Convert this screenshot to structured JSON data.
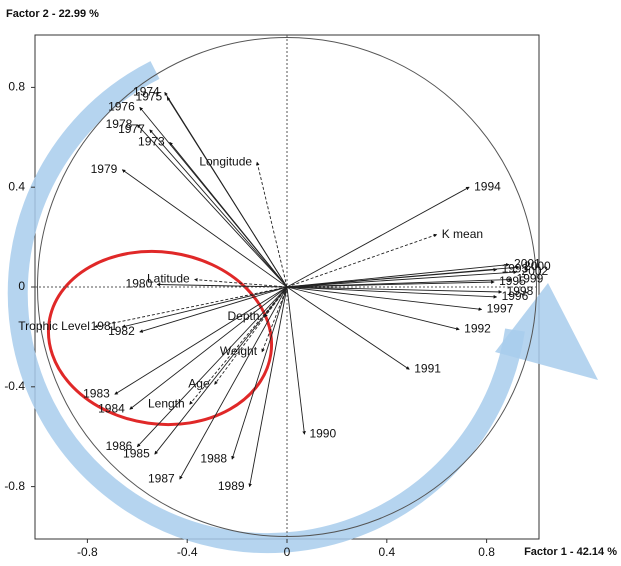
{
  "chart_data": {
    "type": "vectors",
    "x_label": "Factor 1 - 42.14 %",
    "y_label": "Factor 2 - 22.99 %",
    "xlim": [
      -1.01,
      1.01
    ],
    "ylim": [
      -1.01,
      1.01
    ],
    "xticks": [
      -0.8,
      -0.4,
      0,
      0.4,
      0.8
    ],
    "yticks": [
      -0.8,
      -0.4,
      0,
      0.4,
      0.8
    ],
    "correlation_circle": true,
    "vectors": [
      {
        "label": "1974",
        "x": -0.49,
        "y": 0.78,
        "dashed": false,
        "color": "#111111"
      },
      {
        "label": "1975",
        "x": -0.48,
        "y": 0.76,
        "dashed": false,
        "color": "#111111"
      },
      {
        "label": "1976",
        "x": -0.59,
        "y": 0.72,
        "dashed": false,
        "color": "#5a7fb0"
      },
      {
        "label": "1978",
        "x": -0.6,
        "y": 0.65,
        "dashed": false,
        "color": "#111111"
      },
      {
        "label": "1977",
        "x": -0.55,
        "y": 0.63,
        "dashed": false,
        "color": "#111111"
      },
      {
        "label": "1973",
        "x": -0.47,
        "y": 0.58,
        "dashed": false,
        "color": "#111111"
      },
      {
        "label": "1979",
        "x": -0.66,
        "y": 0.47,
        "dashed": false,
        "color": "#111111"
      },
      {
        "label": "Longitude",
        "x": -0.12,
        "y": 0.5,
        "dashed": true,
        "color": "#111111"
      },
      {
        "label": "1994",
        "x": 0.73,
        "y": 0.4,
        "dashed": false,
        "color": "#111111"
      },
      {
        "label": "K mean",
        "x": 0.6,
        "y": 0.21,
        "dashed": true,
        "color": "#111111"
      },
      {
        "label": "2001",
        "x": 0.89,
        "y": 0.09,
        "dashed": false,
        "color": "#111111"
      },
      {
        "label": "2000",
        "x": 0.93,
        "y": 0.08,
        "dashed": false,
        "color": "#111111"
      },
      {
        "label": "1993",
        "x": 0.84,
        "y": 0.07,
        "dashed": false,
        "color": "#111111"
      },
      {
        "label": "2002",
        "x": 0.92,
        "y": 0.06,
        "dashed": false,
        "color": "#111111"
      },
      {
        "label": "1999",
        "x": 0.9,
        "y": 0.03,
        "dashed": false,
        "color": "#111111"
      },
      {
        "label": "1995",
        "x": 0.83,
        "y": 0.02,
        "dashed": false,
        "color": "#111111"
      },
      {
        "label": "1998",
        "x": 0.86,
        "y": -0.02,
        "dashed": false,
        "color": "#111111"
      },
      {
        "label": "1996",
        "x": 0.84,
        "y": -0.04,
        "dashed": false,
        "color": "#111111"
      },
      {
        "label": "1997",
        "x": 0.78,
        "y": -0.09,
        "dashed": false,
        "color": "#5a7fb0"
      },
      {
        "label": "1992",
        "x": 0.69,
        "y": -0.17,
        "dashed": false,
        "color": "#5a7fb0"
      },
      {
        "label": "1991",
        "x": 0.49,
        "y": -0.33,
        "dashed": false,
        "color": "#111111"
      },
      {
        "label": "1990",
        "x": 0.07,
        "y": -0.59,
        "dashed": false,
        "color": "#111111"
      },
      {
        "label": "1989",
        "x": -0.15,
        "y": -0.8,
        "dashed": false,
        "color": "#111111"
      },
      {
        "label": "1988",
        "x": -0.22,
        "y": -0.69,
        "dashed": false,
        "color": "#111111"
      },
      {
        "label": "1987",
        "x": -0.43,
        "y": -0.77,
        "dashed": false,
        "color": "#5a7fb0"
      },
      {
        "label": "1985",
        "x": -0.53,
        "y": -0.67,
        "dashed": false,
        "color": "#5a7fb0"
      },
      {
        "label": "1986",
        "x": -0.6,
        "y": -0.64,
        "dashed": false,
        "color": "#5a7fb0"
      },
      {
        "label": "Age",
        "x": -0.29,
        "y": -0.39,
        "dashed": true,
        "color": "#111111"
      },
      {
        "label": "Weight",
        "x": -0.1,
        "y": -0.26,
        "dashed": true,
        "color": "#111111"
      },
      {
        "label": "Length",
        "x": -0.39,
        "y": -0.47,
        "dashed": true,
        "color": "#111111"
      },
      {
        "label": "Depth",
        "x": -0.09,
        "y": -0.12,
        "dashed": true,
        "color": "#111111"
      },
      {
        "label": "1984",
        "x": -0.63,
        "y": -0.49,
        "dashed": false,
        "color": "#111111"
      },
      {
        "label": "1983",
        "x": -0.69,
        "y": -0.43,
        "dashed": false,
        "color": "#111111"
      },
      {
        "label": "1982",
        "x": -0.59,
        "y": -0.18,
        "dashed": false,
        "color": "#111111"
      },
      {
        "label": "1981",
        "x": -0.66,
        "y": -0.16,
        "dashed": false,
        "color": "#111111"
      },
      {
        "label": "Trophic Level",
        "x": -0.77,
        "y": -0.16,
        "dashed": true,
        "color": "#111111"
      },
      {
        "label": "1980",
        "x": -0.52,
        "y": 0.01,
        "dashed": false,
        "color": "#111111"
      },
      {
        "label": "Latitude",
        "x": -0.37,
        "y": 0.03,
        "dashed": true,
        "color": "#111111"
      }
    ]
  }
}
